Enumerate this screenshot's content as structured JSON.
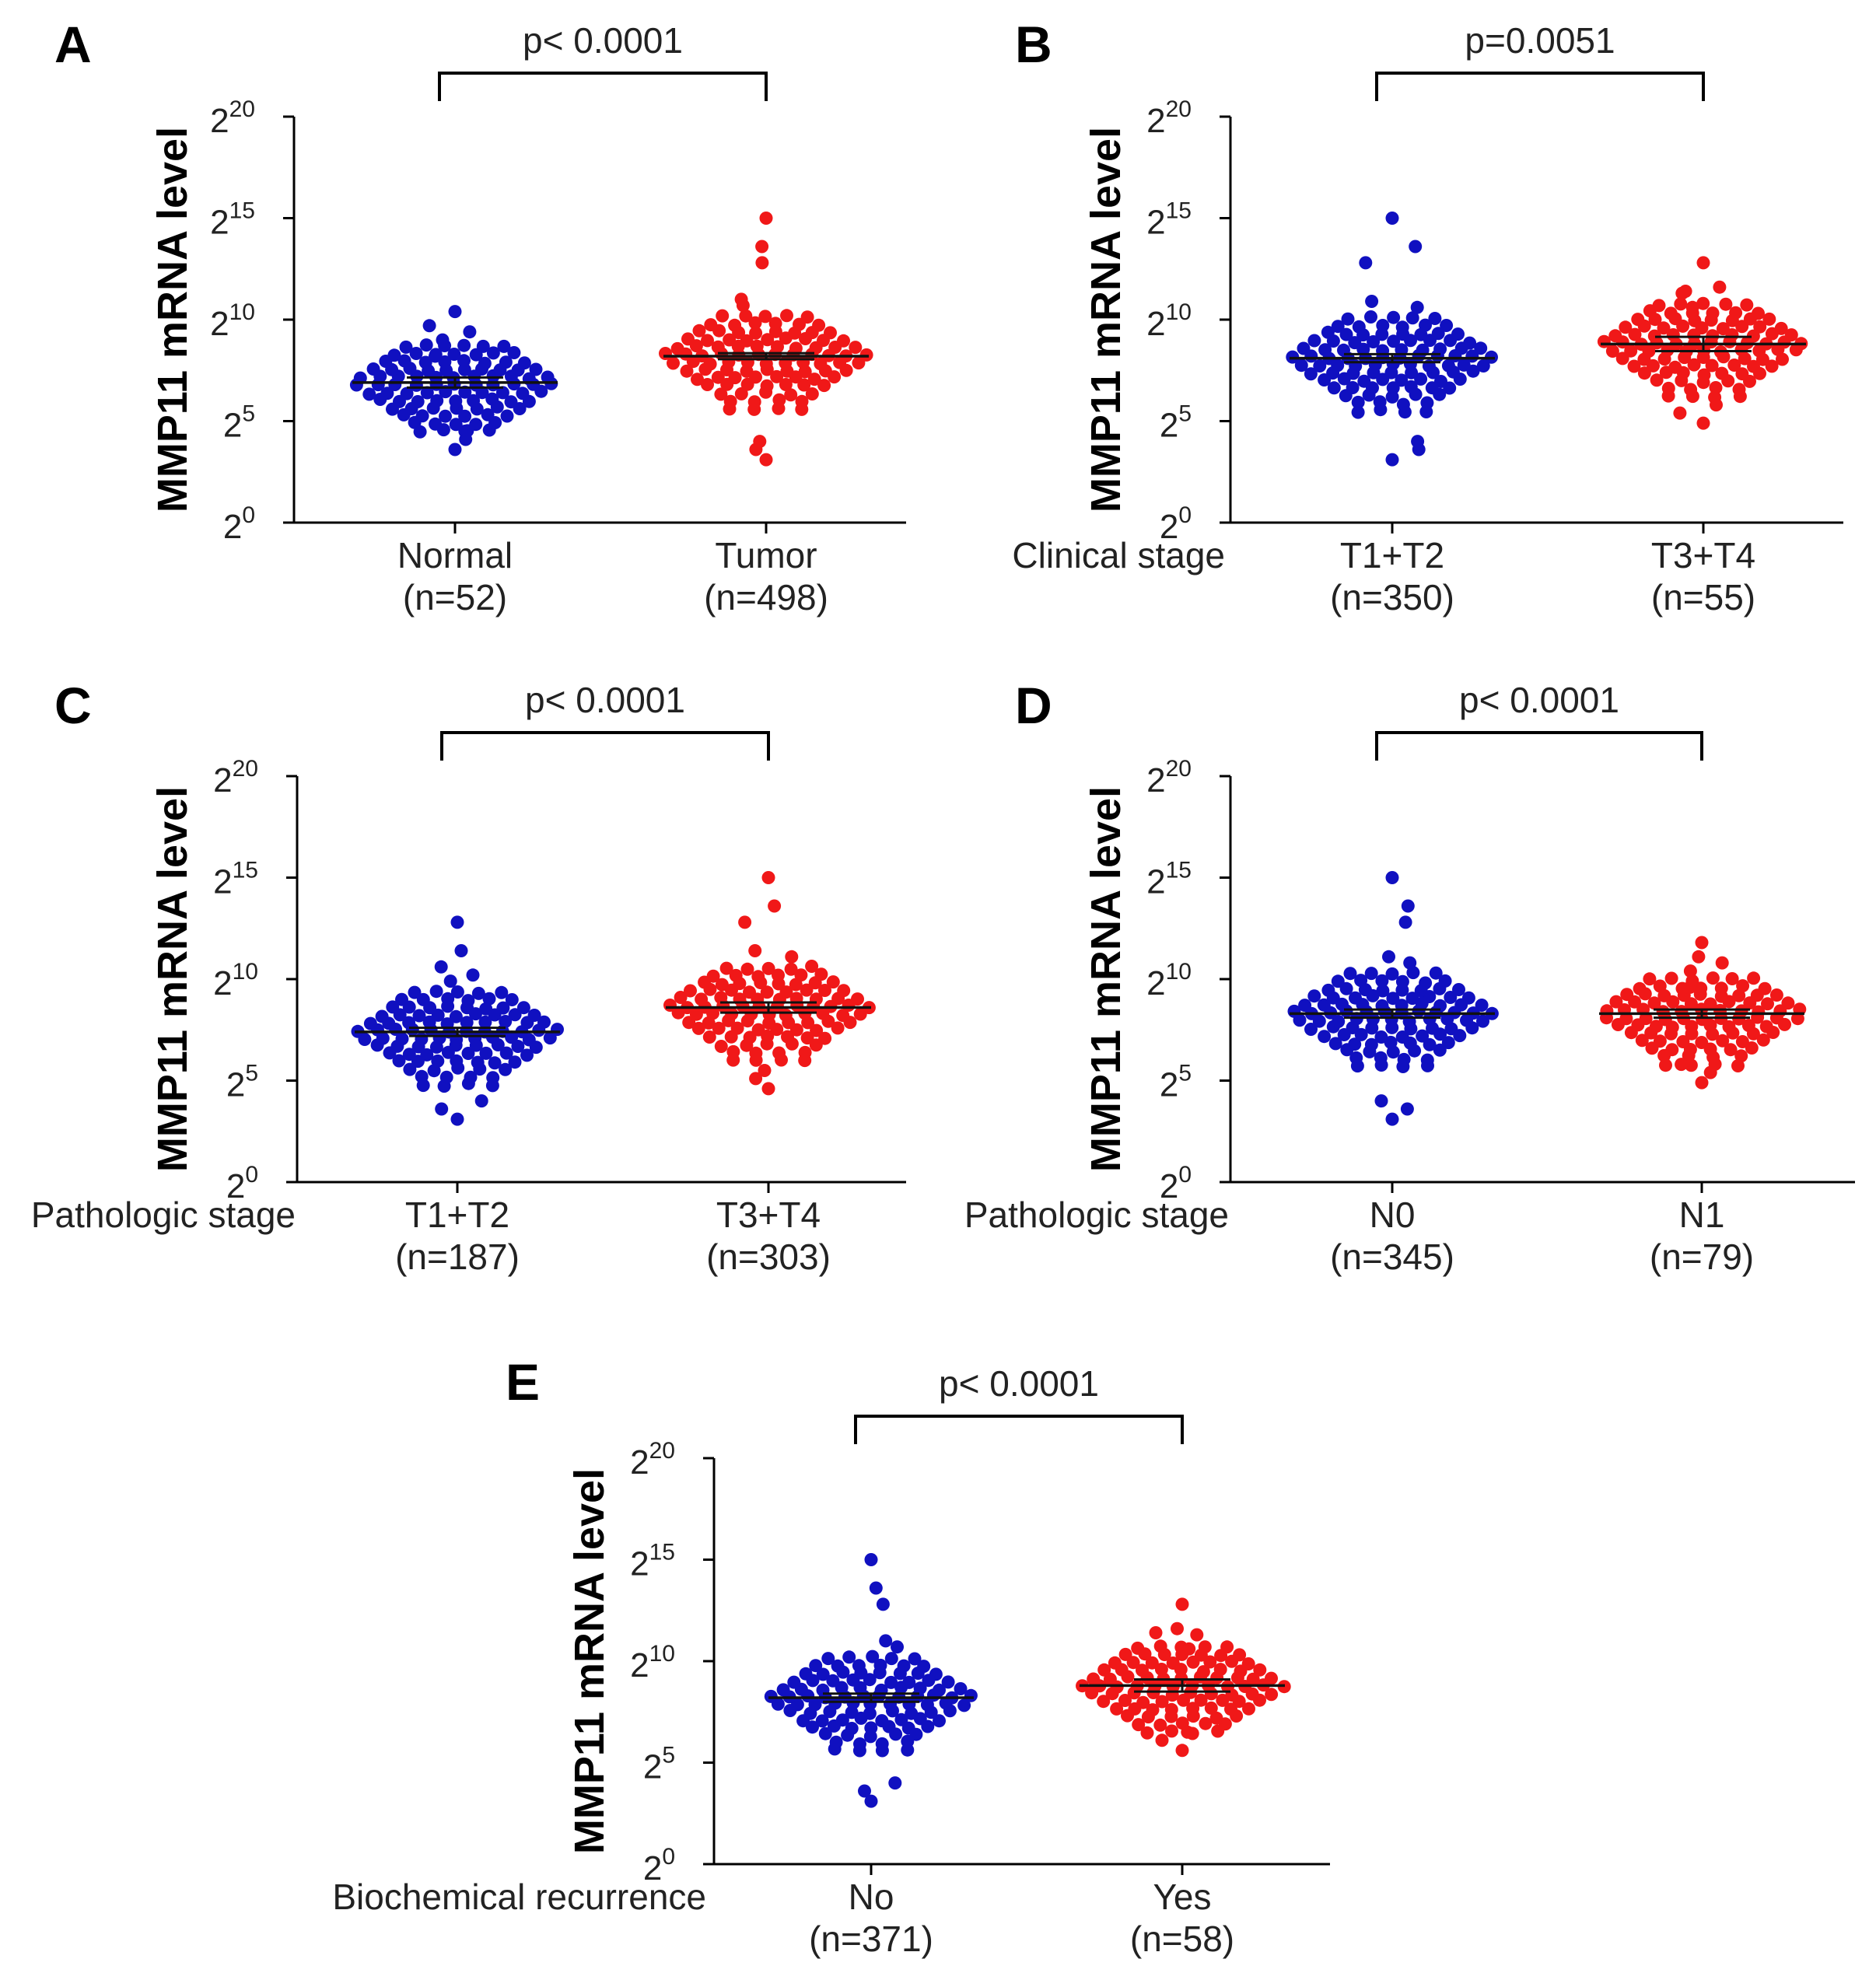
{
  "figure": {
    "colors": {
      "group1": "#1010c0",
      "group2": "#f01818",
      "axis": "#000000",
      "mean_line": "#111111"
    }
  },
  "chart_data": [
    {
      "type": "scatter",
      "panel": "A",
      "ylabel": "MMP11 mRNA level",
      "yscale": "log2",
      "ylim_exponent": [
        0,
        20
      ],
      "yticks": [
        {
          "base": "2",
          "exp": "0"
        },
        {
          "base": "2",
          "exp": "5"
        },
        {
          "base": "2",
          "exp": "10"
        },
        {
          "base": "2",
          "exp": "15"
        },
        {
          "base": "2",
          "exp": "20"
        }
      ],
      "group_label": "",
      "categories": [
        {
          "name": "Normal",
          "n_label": "(n=52)",
          "min_exp": 3.6,
          "max_exp": 10.4,
          "mean_exp": 6.9,
          "sem_exp": 0.25
        },
        {
          "name": "Tumor",
          "n_label": "(n=498)",
          "min_exp": 3.1,
          "max_exp": 15.0,
          "mean_exp": 8.2,
          "sem_exp": 0.15
        }
      ],
      "significance": {
        "label": "p< 0.0001",
        "between": [
          0,
          1
        ]
      }
    },
    {
      "type": "scatter",
      "panel": "B",
      "ylabel": "MMP11 mRNA level",
      "yscale": "log2",
      "ylim_exponent": [
        0,
        20
      ],
      "yticks": [
        {
          "base": "2",
          "exp": "0"
        },
        {
          "base": "2",
          "exp": "5"
        },
        {
          "base": "2",
          "exp": "10"
        },
        {
          "base": "2",
          "exp": "15"
        },
        {
          "base": "2",
          "exp": "20"
        }
      ],
      "group_label": "Clinical stage",
      "categories": [
        {
          "name": "T1+T2",
          "n_label": "(n=350)",
          "min_exp": 3.1,
          "max_exp": 15.0,
          "mean_exp": 8.1,
          "sem_exp": 0.2
        },
        {
          "name": "T3+T4",
          "n_label": "(n=55)",
          "min_exp": 4.9,
          "max_exp": 12.8,
          "mean_exp": 8.8,
          "sem_exp": 0.35
        }
      ],
      "significance": {
        "label": "p=0.0051",
        "between": [
          0,
          1
        ]
      }
    },
    {
      "type": "scatter",
      "panel": "C",
      "ylabel": "MMP11 mRNA level",
      "yscale": "log2",
      "ylim_exponent": [
        0,
        20
      ],
      "yticks": [
        {
          "base": "2",
          "exp": "0"
        },
        {
          "base": "2",
          "exp": "5"
        },
        {
          "base": "2",
          "exp": "10"
        },
        {
          "base": "2",
          "exp": "15"
        },
        {
          "base": "2",
          "exp": "20"
        }
      ],
      "group_label": "Pathologic stage",
      "categories": [
        {
          "name": "T1+T2",
          "n_label": "(n=187)",
          "min_exp": 3.1,
          "max_exp": 12.8,
          "mean_exp": 7.4,
          "sem_exp": 0.2
        },
        {
          "name": "T3+T4",
          "n_label": "(n=303)",
          "min_exp": 4.6,
          "max_exp": 15.0,
          "mean_exp": 8.6,
          "sem_exp": 0.25
        }
      ],
      "significance": {
        "label": "p< 0.0001",
        "between": [
          0,
          1
        ]
      }
    },
    {
      "type": "scatter",
      "panel": "D",
      "ylabel": "MMP11 mRNA level",
      "yscale": "log2",
      "ylim_exponent": [
        0,
        20
      ],
      "yticks": [
        {
          "base": "2",
          "exp": "0"
        },
        {
          "base": "2",
          "exp": "5"
        },
        {
          "base": "2",
          "exp": "10"
        },
        {
          "base": "2",
          "exp": "15"
        },
        {
          "base": "2",
          "exp": "20"
        }
      ],
      "group_label": "Pathologic stage",
      "categories": [
        {
          "name": "N0",
          "n_label": "(n=345)",
          "min_exp": 3.1,
          "max_exp": 15.0,
          "mean_exp": 8.3,
          "sem_exp": 0.2
        },
        {
          "name": "N1",
          "n_label": "(n=79)",
          "min_exp": 4.9,
          "max_exp": 11.8,
          "mean_exp": 8.3,
          "sem_exp": 0.2
        }
      ],
      "significance": {
        "label": "p< 0.0001",
        "between": [
          0,
          1
        ]
      }
    },
    {
      "type": "scatter",
      "panel": "E",
      "ylabel": "MMP11 mRNA level",
      "yscale": "log2",
      "ylim_exponent": [
        0,
        20
      ],
      "yticks": [
        {
          "base": "2",
          "exp": "0"
        },
        {
          "base": "2",
          "exp": "5"
        },
        {
          "base": "2",
          "exp": "10"
        },
        {
          "base": "2",
          "exp": "15"
        },
        {
          "base": "2",
          "exp": "20"
        }
      ],
      "group_label": "Biochemical recurrence",
      "categories": [
        {
          "name": "No",
          "n_label": "(n=371)",
          "min_exp": 3.1,
          "max_exp": 15.0,
          "mean_exp": 8.2,
          "sem_exp": 0.2
        },
        {
          "name": "Yes",
          "n_label": "(n=58)",
          "min_exp": 5.6,
          "max_exp": 12.8,
          "mean_exp": 8.8,
          "sem_exp": 0.3
        }
      ],
      "significance": {
        "label": "p< 0.0001",
        "between": [
          0,
          1
        ]
      }
    }
  ]
}
